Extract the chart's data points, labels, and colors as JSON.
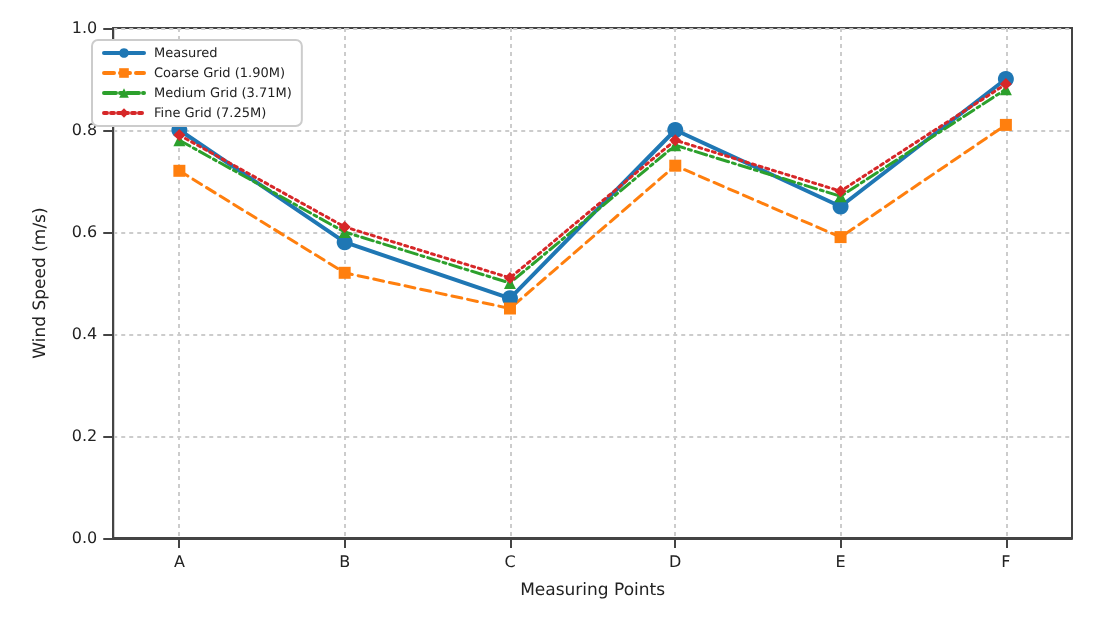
{
  "chart_data": {
    "type": "line",
    "xlabel": "Measuring Points",
    "ylabel": "Wind Speed (m/s)",
    "categories": [
      "A",
      "B",
      "C",
      "D",
      "E",
      "F"
    ],
    "series": [
      {
        "name": "Measured",
        "color": "#1f77b4",
        "marker": "circle",
        "line_style": "solid",
        "values": [
          0.8,
          0.58,
          0.47,
          0.8,
          0.65,
          0.9
        ]
      },
      {
        "name": "Coarse Grid (1.90M)",
        "color": "#ff7f0e",
        "marker": "square",
        "line_style": "dashed",
        "values": [
          0.72,
          0.52,
          0.45,
          0.73,
          0.59,
          0.81
        ]
      },
      {
        "name": "Medium Grid (3.71M)",
        "color": "#2ca02c",
        "marker": "triangle",
        "line_style": "dashdot",
        "values": [
          0.78,
          0.6,
          0.5,
          0.77,
          0.67,
          0.88
        ]
      },
      {
        "name": "Fine Grid (7.25M)",
        "color": "#d62728",
        "marker": "diamond",
        "line_style": "dotted",
        "values": [
          0.79,
          0.61,
          0.51,
          0.78,
          0.68,
          0.89
        ]
      }
    ],
    "ylim": [
      0,
      1.0
    ],
    "yticks": [
      {
        "value": 0,
        "label": "0.0"
      },
      0.2,
      0.4,
      0.6,
      0.8,
      {
        "value": 1,
        "label": "1.0"
      }
    ],
    "grid": true,
    "legend": "top left"
  }
}
